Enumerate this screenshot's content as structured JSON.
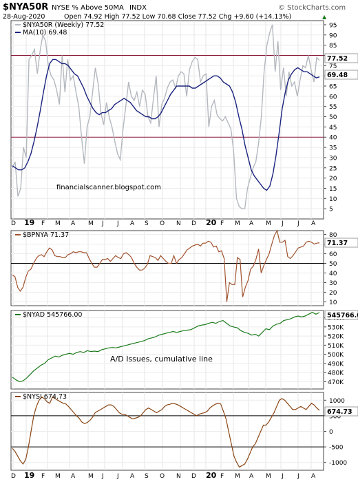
{
  "header": {
    "symbol": "$NYA50R",
    "description": "NYSE % Above 50MA",
    "exchange": "INDX",
    "watermark": "© StockCharts.com",
    "date": "28-Aug-2020",
    "ohlc": "Open 74.92  High 77.52  Low 70.68  Close 77.52  Chg +9.60 (+14.13%)",
    "up_arrow": "▲"
  },
  "annotations": {
    "blog": "financialscanner.blogspot.com",
    "ad_note": "A/D Issues, cumulative line"
  },
  "x_axis": {
    "labels": [
      "D",
      "19",
      "F",
      "M",
      "A",
      "M",
      "J",
      "J",
      "A",
      "S",
      "O",
      "N",
      "D",
      "20",
      "F",
      "M",
      "A",
      "M",
      "J",
      "J",
      "A"
    ],
    "bold": [
      "19",
      "20"
    ]
  },
  "chart_data": [
    {
      "type": "line",
      "panel": "NYA50R",
      "legend": [
        "$NYA50R (Weekly) 77.52",
        "MA(10) 69.48"
      ],
      "ylim": [
        0,
        97
      ],
      "y_ticks": [
        5,
        10,
        15,
        20,
        25,
        30,
        35,
        40,
        45,
        50,
        55,
        60,
        65,
        70,
        75,
        80,
        85,
        90,
        95
      ],
      "reference_lines": [
        80,
        40
      ],
      "last_value_labels": [
        "77.52",
        "69.48"
      ],
      "series": [
        {
          "name": "$NYA50R (Weekly)",
          "color": "#b4b8be",
          "values": [
            25,
            28,
            11,
            15,
            35,
            30,
            78,
            80,
            83,
            71,
            82,
            90,
            87,
            75,
            70,
            68,
            63,
            56,
            80,
            62,
            78,
            68,
            70,
            62,
            55,
            40,
            27,
            45,
            50,
            62,
            74,
            66,
            52,
            46,
            57,
            50,
            45,
            38,
            32,
            29,
            44,
            55,
            67,
            60,
            58,
            62,
            55,
            63,
            61,
            50,
            47,
            59,
            70,
            45,
            56,
            59,
            64,
            67,
            68,
            64,
            70,
            72,
            71,
            60,
            73,
            77,
            79,
            78,
            67,
            70,
            71,
            45,
            55,
            58,
            51,
            49,
            48,
            50,
            47,
            44,
            33,
            10,
            6,
            5,
            5,
            15,
            20,
            25,
            28,
            37,
            50,
            72,
            85,
            91,
            95,
            72,
            87,
            63,
            74,
            60,
            72,
            65,
            67,
            60,
            68,
            75,
            74,
            80,
            73,
            67,
            79,
            77.52
          ]
        },
        {
          "name": "MA(10)",
          "color": "#1a237e",
          "values": [
            26,
            25,
            24,
            24,
            25,
            28,
            32,
            38,
            45,
            53,
            62,
            70,
            76,
            78,
            78,
            77,
            76,
            76,
            75,
            73,
            71,
            70,
            67,
            64,
            60,
            57,
            54,
            52,
            51,
            52,
            52,
            53,
            54,
            56,
            57,
            58,
            59,
            58,
            57,
            55,
            53,
            52,
            51,
            50,
            50,
            49,
            49,
            50,
            52,
            55,
            58,
            61,
            63,
            65,
            65,
            65,
            65,
            65,
            64,
            64,
            65,
            66,
            67,
            68,
            69,
            70,
            70,
            69,
            67,
            66,
            65,
            62,
            57,
            50,
            44,
            36,
            30,
            24,
            21,
            19,
            17,
            15,
            14,
            16,
            22,
            31,
            42,
            54,
            62,
            68,
            71,
            73,
            74,
            73,
            72,
            72,
            71,
            70,
            69,
            69.48
          ]
        }
      ]
    },
    {
      "type": "line",
      "panel": "BPNYA",
      "legend": [
        "$BPNYA 71.37"
      ],
      "ylim": [
        6,
        84
      ],
      "y_ticks": [
        10,
        20,
        30,
        40,
        50,
        60,
        70,
        80
      ],
      "reference_lines": [
        50
      ],
      "last_value_labels": [
        "71.37"
      ],
      "series": [
        {
          "name": "$BPNYA",
          "color": "#a0522d",
          "values": [
            38,
            36,
            25,
            21,
            25,
            35,
            42,
            44,
            50,
            55,
            58,
            59,
            57,
            62,
            66,
            64,
            58,
            57,
            57,
            56,
            56,
            59,
            60,
            62,
            61,
            62,
            62,
            61,
            61,
            55,
            50,
            46,
            46,
            50,
            54,
            54,
            55,
            52,
            55,
            58,
            56,
            55,
            60,
            61,
            59,
            56,
            50,
            46,
            43,
            43,
            45,
            49,
            58,
            57,
            56,
            53,
            58,
            55,
            52,
            50,
            50,
            58,
            50,
            54,
            56,
            60,
            64,
            66,
            68,
            69,
            70,
            68,
            71,
            71,
            73,
            72,
            67,
            68,
            62,
            63,
            55,
            10,
            30,
            28,
            28,
            56,
            54,
            15,
            25,
            32,
            44,
            47,
            54,
            65,
            40,
            48,
            54,
            60,
            70,
            79,
            84,
            72,
            72,
            74,
            57,
            55,
            58,
            62,
            66,
            67,
            68,
            72,
            73,
            72,
            70,
            71,
            71.37
          ]
        }
      ]
    },
    {
      "type": "line",
      "panel": "NYAD",
      "legend": [
        "$NYAD 545766.00"
      ],
      "ylim": [
        462000,
        548000
      ],
      "y_ticks": [
        470000,
        480000,
        490000,
        500000,
        510000,
        520000,
        530000,
        540000,
        550000
      ],
      "y_tick_labels": [
        "470K",
        "480K",
        "490K",
        "500K",
        "510K",
        "520K",
        "530K",
        "540K",
        "550K"
      ],
      "last_value_labels": [
        "545766.0"
      ],
      "series": [
        {
          "name": "$NYAD",
          "color": "#1b7a1b",
          "values": [
            475000,
            472000,
            470000,
            471000,
            474000,
            478000,
            482000,
            485000,
            488000,
            490000,
            494000,
            496000,
            498000,
            497000,
            499000,
            500000,
            501000,
            500000,
            502000,
            503000,
            502000,
            504000,
            503000,
            503500,
            503000,
            505000,
            506000,
            507000,
            507500,
            507000,
            508000,
            509000,
            510000,
            511000,
            512000,
            513000,
            514000,
            515000,
            517000,
            518000,
            519000,
            521000,
            522000,
            523000,
            524000,
            525000,
            524000,
            525000,
            526000,
            526500,
            527000,
            529000,
            531000,
            532000,
            532500,
            534000,
            535000,
            534000,
            536000,
            537000,
            534000,
            531000,
            530000,
            529000,
            526000,
            524000,
            523000,
            521000,
            522000,
            520000,
            524000,
            528000,
            527000,
            531000,
            533000,
            534000,
            537000,
            538000,
            539000,
            541000,
            542000,
            541000,
            542000,
            544000,
            546000,
            544000,
            545766
          ]
        }
      ]
    },
    {
      "type": "line",
      "panel": "NYSI",
      "legend": [
        "$NYSI 674.73"
      ],
      "ylim": [
        -1250,
        1250
      ],
      "y_ticks": [
        -1000,
        -500,
        0,
        500,
        1000
      ],
      "reference_lines": [
        500,
        -500
      ],
      "last_value_labels": [
        "674.73"
      ],
      "series": [
        {
          "name": "$NYSI",
          "color": "#8b4513",
          "values": [
            -550,
            -650,
            -800,
            -950,
            -1050,
            -900,
            -500,
            0,
            500,
            800,
            1000,
            1100,
            1050,
            950,
            900,
            1100,
            1050,
            1000,
            950,
            900,
            880,
            800,
            700,
            600,
            500,
            420,
            300,
            250,
            280,
            350,
            450,
            600,
            650,
            700,
            750,
            800,
            850,
            850,
            800,
            700,
            600,
            550,
            550,
            500,
            450,
            400,
            420,
            450,
            500,
            600,
            700,
            750,
            700,
            650,
            600,
            650,
            700,
            800,
            850,
            870,
            900,
            880,
            850,
            800,
            750,
            700,
            650,
            600,
            550,
            500,
            550,
            580,
            600,
            650,
            750,
            820,
            870,
            900,
            880,
            650,
            400,
            0,
            -400,
            -800,
            -1000,
            -1150,
            -1100,
            -1050,
            -900,
            -700,
            -500,
            -400,
            -200,
            0,
            200,
            200,
            300,
            450,
            600,
            800,
            1000,
            1050,
            1000,
            900,
            800,
            700,
            700,
            750,
            800,
            750,
            700,
            800,
            900,
            850,
            750,
            674.73
          ]
        }
      ]
    }
  ]
}
